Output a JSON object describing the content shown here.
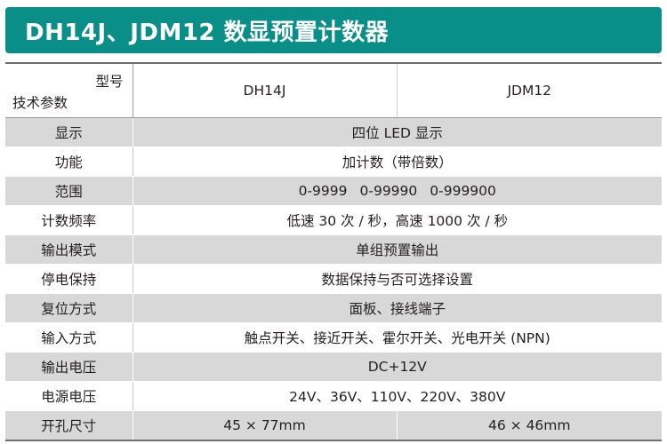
{
  "title": "DH14J、JDM12 数显预置计数器",
  "header": {
    "type_label": "型号",
    "param_label": "技术参数",
    "models": [
      "DH14J",
      "JDM12"
    ]
  },
  "rows": [
    {
      "label": "显示",
      "value": "四位 LED 显示"
    },
    {
      "label": "功能",
      "value": "加计数（带倍数）"
    },
    {
      "label": "范围",
      "values": [
        "0-9999",
        "0-99990",
        "0-999900"
      ]
    },
    {
      "label": "计数频率",
      "value": "低速 30 次 / 秒，高速 1000 次 / 秒"
    },
    {
      "label": "输出模式",
      "value": "单组预置输出"
    },
    {
      "label": "停电保持",
      "value": "数据保持与否可选择设置"
    },
    {
      "label": "复位方式",
      "value": "面板、接线端子"
    },
    {
      "label": "输入方式",
      "value": "触点开关、接近开关、霍尔开关、光电开关 (NPN)"
    },
    {
      "label": "输出电压",
      "value": "DC+12V"
    },
    {
      "label": "电源电压",
      "value": "24V、36V、110V、220V、380V"
    },
    {
      "label": "开孔尺寸",
      "values": [
        "45 × 77mm",
        "46 × 46mm"
      ]
    }
  ],
  "colors": {
    "banner": "#0a8f88",
    "shaded_row": "#d8d8d8"
  }
}
